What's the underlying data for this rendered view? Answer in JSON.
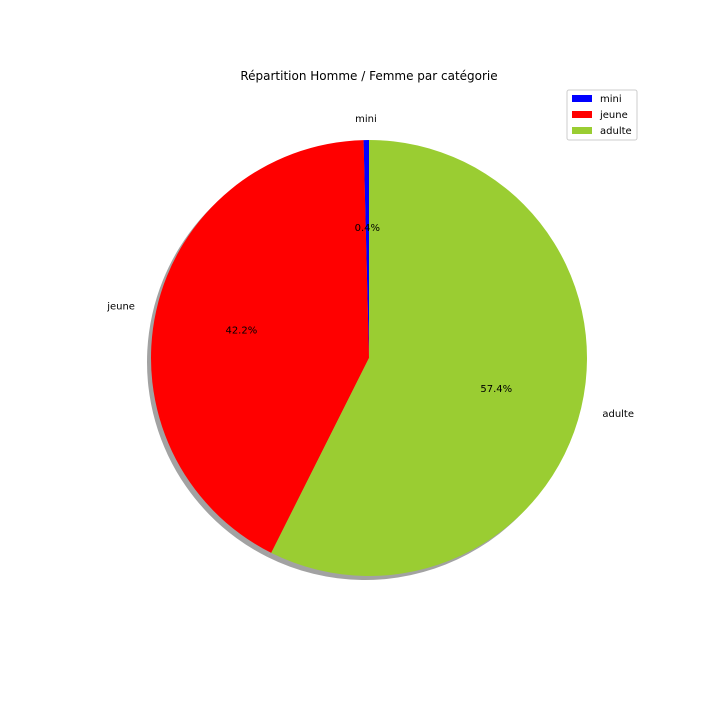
{
  "chart_data": {
    "type": "pie",
    "title": "Répartition Homme / Femme par catégorie",
    "categories": [
      "mini",
      "jeune",
      "adulte"
    ],
    "values": [
      0.4,
      42.2,
      57.4
    ],
    "percent_labels": [
      "0.4%",
      "42.2%",
      "57.4%"
    ],
    "colors": [
      "#0000ff",
      "#ff0000",
      "#9acd32"
    ],
    "start_angle_deg": 90,
    "direction": "counterclockwise",
    "shadow": true,
    "legend": {
      "position": "top-right",
      "entries": [
        "mini",
        "jeune",
        "adulte"
      ]
    }
  }
}
